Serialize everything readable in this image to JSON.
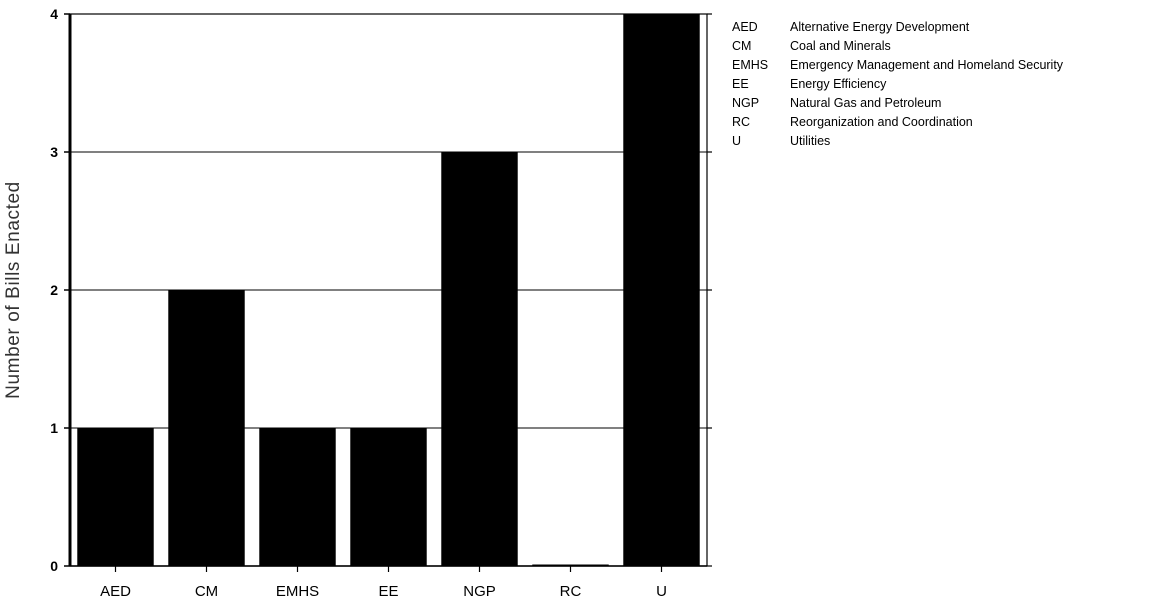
{
  "chart_data": {
    "type": "bar",
    "title": "",
    "xlabel": "",
    "ylabel": "Number of Bills Enacted",
    "categories": [
      "AED",
      "CM",
      "EMHS",
      "EE",
      "NGP",
      "RC",
      "U"
    ],
    "values": [
      1,
      2,
      1,
      1,
      3,
      0,
      4
    ],
    "ylim": [
      0,
      4
    ],
    "yticks": [
      "0",
      "1",
      "2",
      "3",
      "4"
    ],
    "grid": true,
    "bar_color": "#000000",
    "legend_placement": "right",
    "legend": [
      {
        "code": "AED",
        "label": "Alternative Energy Development"
      },
      {
        "code": "CM",
        "label": "Coal and Minerals"
      },
      {
        "code": "EMHS",
        "label": "Emergency Management and Homeland Security"
      },
      {
        "code": "EE",
        "label": "Energy Efficiency"
      },
      {
        "code": "NGP",
        "label": "Natural Gas and Petroleum"
      },
      {
        "code": "RC",
        "label": "Reorganization and Coordination"
      },
      {
        "code": "U",
        "label": "Utilities"
      }
    ]
  }
}
